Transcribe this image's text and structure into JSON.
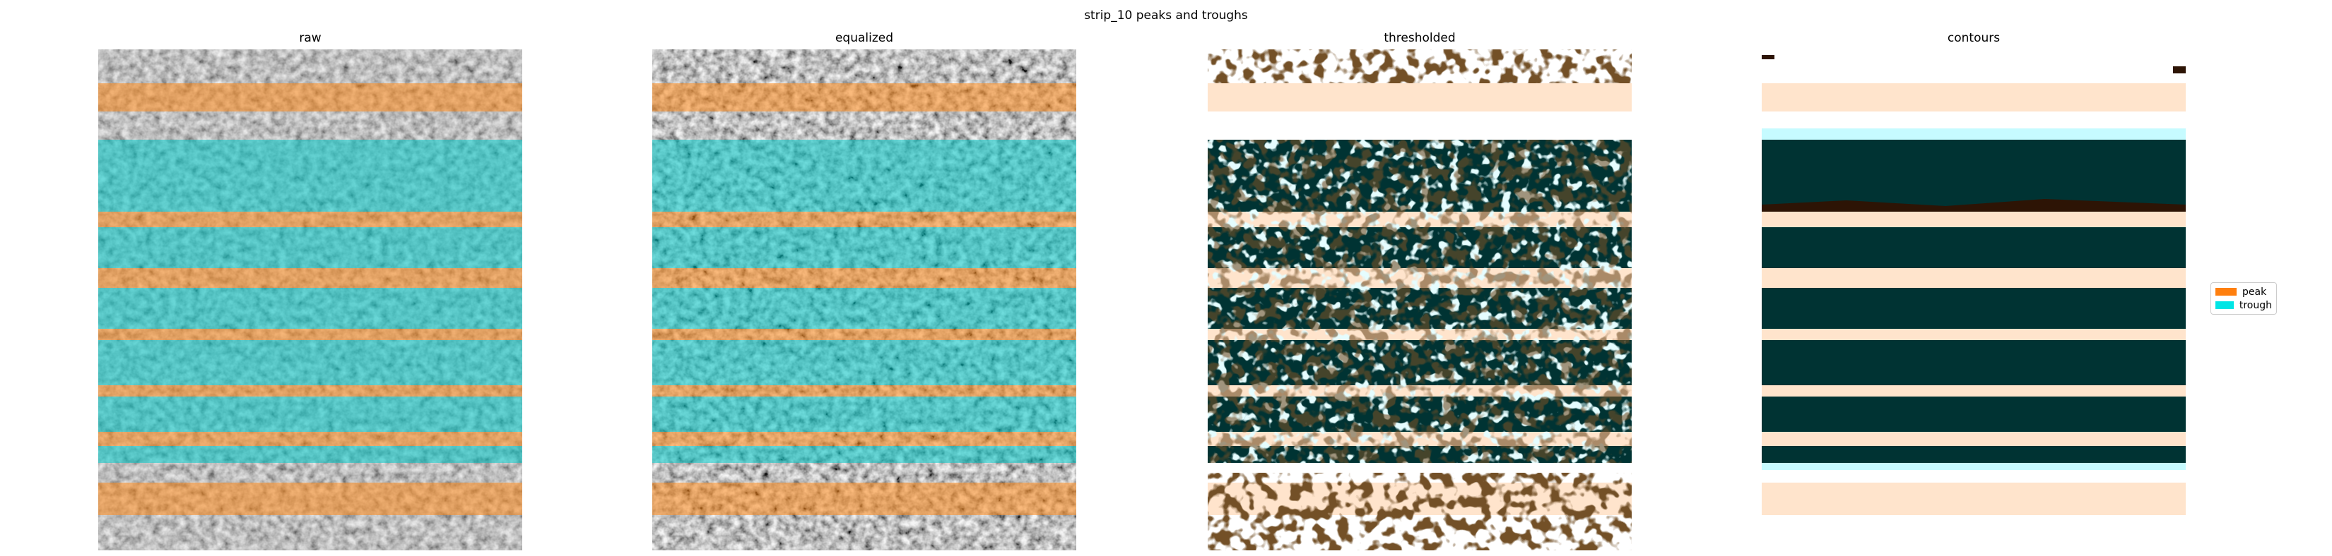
{
  "figure": {
    "title": "strip_10 peaks and troughs",
    "panels": [
      {
        "title": "raw"
      },
      {
        "title": "equalized"
      },
      {
        "title": "thresholded"
      },
      {
        "title": "contours"
      }
    ]
  },
  "legend": {
    "items": [
      {
        "label": "peak",
        "color": "#ff7f0e"
      },
      {
        "label": "trough",
        "color": "#00e5e5"
      }
    ]
  },
  "colors": {
    "peak_overlay": "#ff8a1a",
    "trough_overlay": "#00c8c8",
    "peak_fill": "#ffe4cc",
    "peak_dark": "#2d1405",
    "trough_fill": "#c6fbff",
    "trough_dark": "#003333"
  }
}
